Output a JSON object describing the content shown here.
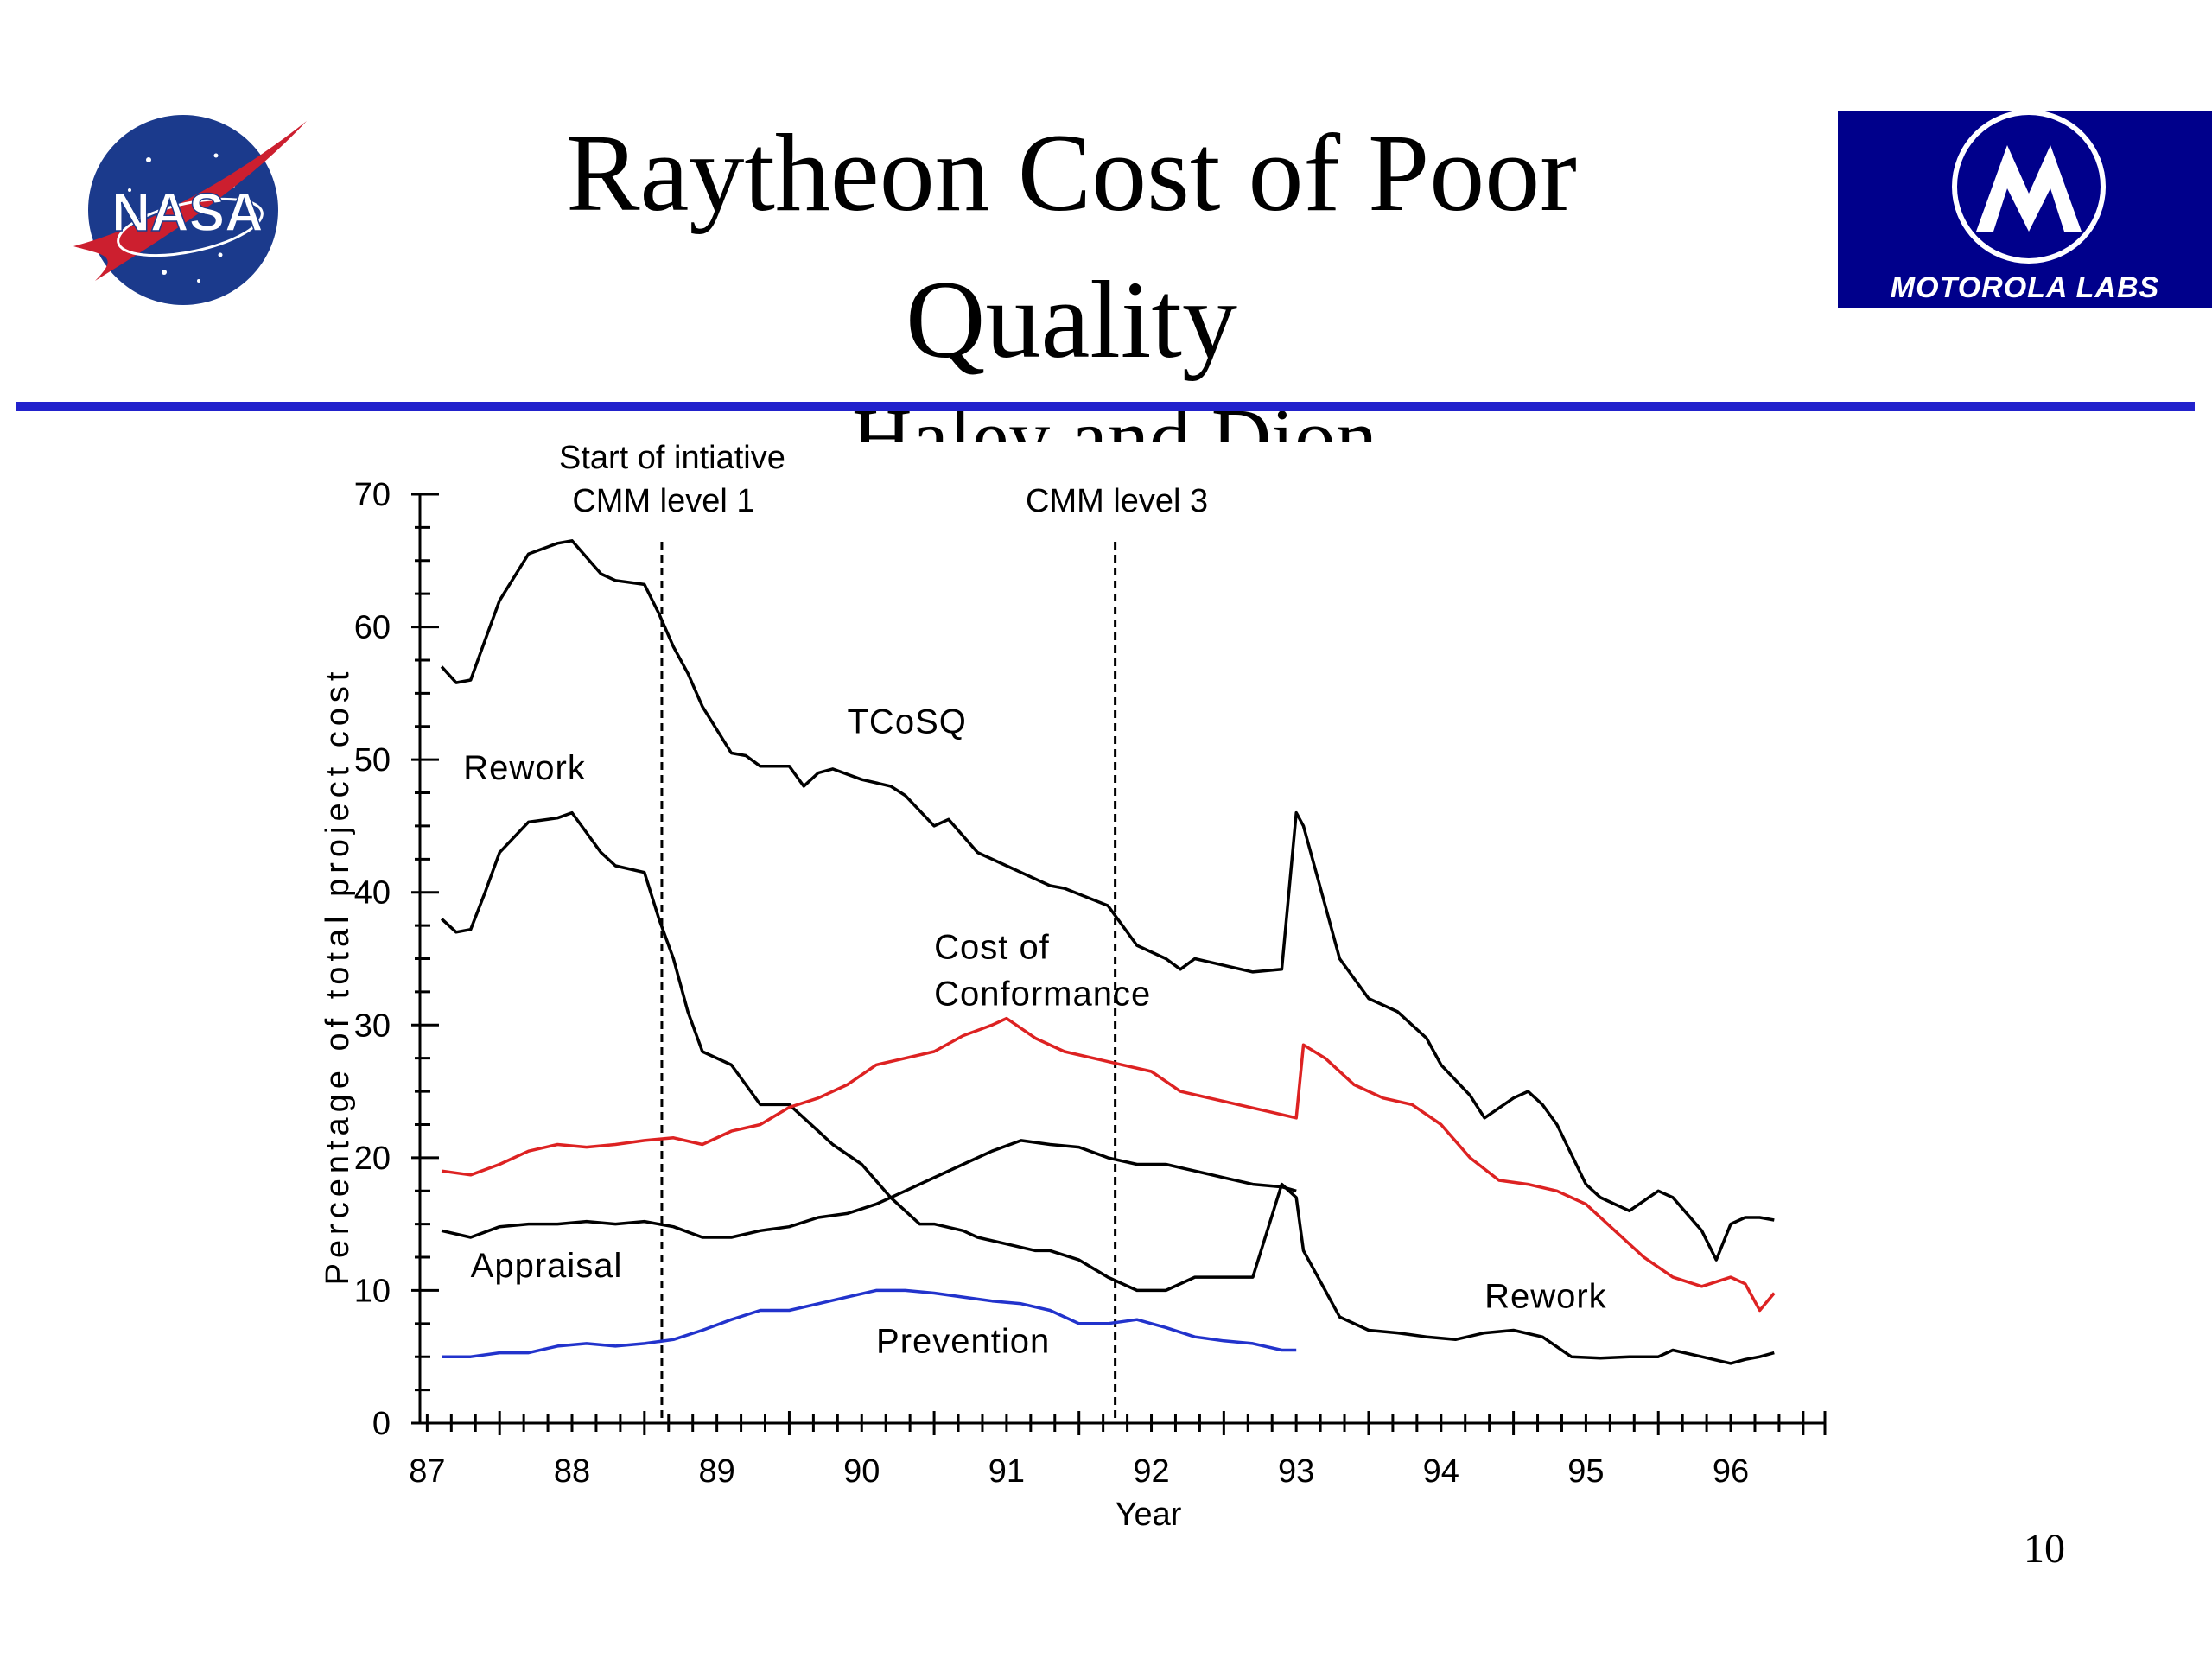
{
  "slide": {
    "title": "Raytheon Cost of Poor Quality",
    "subtitle": "Haley and Dion",
    "page_number": "10",
    "logos": {
      "left": {
        "icon": "nasa-logo",
        "text": "NASA"
      },
      "right": {
        "icon": "motorola-logo",
        "text": "MOTOROLA LABS"
      }
    },
    "colors": {
      "rule": "#2222cc",
      "motorola_bg": "#00008b",
      "nasa_blue": "#1b3a8c",
      "nasa_red": "#cc1f2f"
    }
  },
  "chart_data": {
    "type": "line",
    "xlabel": "Year",
    "ylabel": "Percentage of total project cost",
    "xlim": [
      86.45,
      96.15
    ],
    "ylim": [
      0,
      70
    ],
    "x_ticks": [
      87,
      88,
      89,
      90,
      91,
      92,
      93,
      94,
      95,
      96
    ],
    "y_ticks": [
      0,
      10,
      20,
      30,
      40,
      50,
      60,
      70
    ],
    "grid": false,
    "legend": "none",
    "vlines": [
      {
        "x": 88.12,
        "label": [
          "Start of intiative",
          "CMM level 1"
        ]
      },
      {
        "x": 91.25,
        "label": [
          "CMM level 3"
        ]
      }
    ],
    "annotations": [
      {
        "text": "TCoSQ",
        "x": 89.4,
        "y": 52
      },
      {
        "text": "Rework",
        "x": 86.75,
        "y": 48.5
      },
      {
        "text": "Cost of",
        "x": 90.0,
        "y": 35
      },
      {
        "text": "Conformance",
        "x": 90.0,
        "y": 31.5
      },
      {
        "text": "Appraisal",
        "x": 86.8,
        "y": 11
      },
      {
        "text": "Prevention",
        "x": 89.6,
        "y": 5.3
      },
      {
        "text": "Rework",
        "x": 93.8,
        "y": 8.7
      }
    ],
    "series": [
      {
        "name": "TCoSQ",
        "color": "#000000",
        "x": [
          86.6,
          86.7,
          86.8,
          86.9,
          87.0,
          87.2,
          87.4,
          87.5,
          87.7,
          87.8,
          88.0,
          88.1,
          88.2,
          88.3,
          88.4,
          88.6,
          88.7,
          88.8,
          89.0,
          89.1,
          89.2,
          89.3,
          89.5,
          89.7,
          89.8,
          90.0,
          90.1,
          90.3,
          90.5,
          90.6,
          90.8,
          90.9,
          91.2,
          91.4,
          91.6,
          91.7,
          91.8,
          92.0,
          92.2,
          92.4,
          92.5,
          92.55,
          92.7,
          92.8,
          93.0,
          93.2,
          93.4,
          93.5,
          93.7,
          93.8,
          94.0,
          94.1,
          94.2,
          94.3,
          94.5,
          94.6,
          94.7,
          94.8,
          95.0,
          95.1,
          95.3,
          95.4,
          95.5,
          95.6,
          95.7,
          95.8
        ],
        "values": [
          57,
          55.8,
          56,
          59,
          62,
          65.5,
          66.3,
          66.5,
          64,
          63.5,
          63.2,
          61,
          58.5,
          56.5,
          54,
          50.5,
          50.3,
          49.5,
          49.5,
          48,
          49,
          49.3,
          48.5,
          48,
          47.3,
          45,
          45.5,
          43,
          42,
          41.5,
          40.5,
          40.3,
          39,
          36,
          35,
          34.2,
          35,
          34.5,
          34,
          34.2,
          46,
          45,
          39,
          35,
          32,
          31,
          29,
          27,
          24.7,
          23,
          24.5,
          25,
          24,
          22.5,
          18,
          17,
          16.5,
          16,
          17.5,
          17,
          14.5,
          12.3,
          15,
          15.5,
          15.5,
          15.3
        ]
      },
      {
        "name": "Rework",
        "color": "#000000",
        "x": [
          86.6,
          86.7,
          86.8,
          86.9,
          87.0,
          87.2,
          87.4,
          87.5,
          87.7,
          87.8,
          88.0,
          88.1,
          88.2,
          88.3,
          88.4,
          88.6,
          88.7,
          88.8,
          89.0,
          89.2,
          89.3,
          89.5,
          89.7,
          89.9,
          90.0,
          90.2,
          90.3,
          90.5,
          90.7,
          90.8,
          91.0,
          91.2,
          91.4,
          91.6,
          91.8,
          92.0,
          92.2,
          92.4,
          92.5,
          92.55,
          92.7,
          92.8,
          93.0,
          93.2,
          93.4,
          93.6,
          93.8,
          94.0,
          94.2,
          94.4,
          94.6,
          94.8,
          95.0,
          95.1,
          95.3,
          95.5,
          95.6,
          95.7,
          95.8
        ],
        "values": [
          38,
          37,
          37.2,
          40,
          43,
          45.3,
          45.6,
          46,
          43,
          42,
          41.5,
          38,
          35,
          31,
          28,
          27,
          25.5,
          24,
          24,
          22,
          21,
          19.5,
          17,
          15,
          15,
          14.5,
          14,
          13.5,
          13,
          13,
          12.3,
          11,
          10,
          10,
          11,
          11,
          11,
          18,
          17,
          13,
          10,
          8,
          7,
          6.8,
          6.5,
          6.3,
          6.8,
          7,
          6.5,
          5,
          4.9,
          5,
          5,
          5.5,
          5,
          4.5,
          4.8,
          5,
          5.3
        ]
      },
      {
        "name": "Cost of Conformance",
        "color": "#dd2222",
        "x": [
          86.6,
          86.8,
          87.0,
          87.2,
          87.4,
          87.6,
          87.8,
          88.0,
          88.2,
          88.4,
          88.6,
          88.8,
          89.0,
          89.2,
          89.4,
          89.6,
          89.8,
          90.0,
          90.2,
          90.4,
          90.5,
          90.7,
          90.9,
          91.1,
          91.3,
          91.5,
          91.7,
          91.9,
          92.1,
          92.3,
          92.5,
          92.55,
          92.7,
          92.9,
          93.1,
          93.3,
          93.5,
          93.7,
          93.9,
          94.1,
          94.3,
          94.5,
          94.7,
          94.9,
          95.1,
          95.3,
          95.5,
          95.6,
          95.7,
          95.8
        ],
        "values": [
          19,
          18.7,
          19.5,
          20.5,
          21,
          20.8,
          21,
          21.3,
          21.5,
          21,
          22,
          22.5,
          23.8,
          24.5,
          25.5,
          27,
          27.5,
          28,
          29.2,
          30,
          30.5,
          29,
          28,
          27.5,
          27,
          26.5,
          25,
          24.5,
          24,
          23.5,
          23,
          28.5,
          27.5,
          25.5,
          24.5,
          24,
          22.5,
          20,
          18.3,
          18,
          17.5,
          16.5,
          14.5,
          12.5,
          11,
          10.3,
          11,
          10.5,
          8.5,
          9.8
        ]
      },
      {
        "name": "Appraisal",
        "color": "#000000",
        "x": [
          86.6,
          86.8,
          87.0,
          87.2,
          87.4,
          87.6,
          87.8,
          88.0,
          88.2,
          88.4,
          88.6,
          88.8,
          89.0,
          89.2,
          89.4,
          89.6,
          89.8,
          90.0,
          90.2,
          90.4,
          90.6,
          90.8,
          91.0,
          91.2,
          91.4,
          91.6,
          91.8,
          92.0,
          92.2,
          92.4,
          92.5
        ],
        "values": [
          14.5,
          14,
          14.8,
          15,
          15,
          15.2,
          15,
          15.2,
          14.8,
          14,
          14,
          14.5,
          14.8,
          15.5,
          15.8,
          16.5,
          17.5,
          18.5,
          19.5,
          20.5,
          21.3,
          21,
          20.8,
          20,
          19.5,
          19.5,
          19,
          18.5,
          18,
          17.8,
          17.5
        ]
      },
      {
        "name": "Prevention",
        "color": "#2233cc",
        "x": [
          86.6,
          86.8,
          87.0,
          87.2,
          87.4,
          87.6,
          87.8,
          88.0,
          88.2,
          88.4,
          88.6,
          88.8,
          89.0,
          89.2,
          89.4,
          89.6,
          89.8,
          90.0,
          90.2,
          90.4,
          90.6,
          90.8,
          91.0,
          91.2,
          91.4,
          91.6,
          91.8,
          92.0,
          92.2,
          92.4,
          92.5
        ],
        "values": [
          5,
          5,
          5.3,
          5.3,
          5.8,
          6,
          5.8,
          6,
          6.3,
          7,
          7.8,
          8.5,
          8.5,
          9,
          9.5,
          10,
          10,
          9.8,
          9.5,
          9.2,
          9,
          8.5,
          7.5,
          7.5,
          7.8,
          7.2,
          6.5,
          6.2,
          6,
          5.5,
          5.5
        ]
      }
    ]
  }
}
